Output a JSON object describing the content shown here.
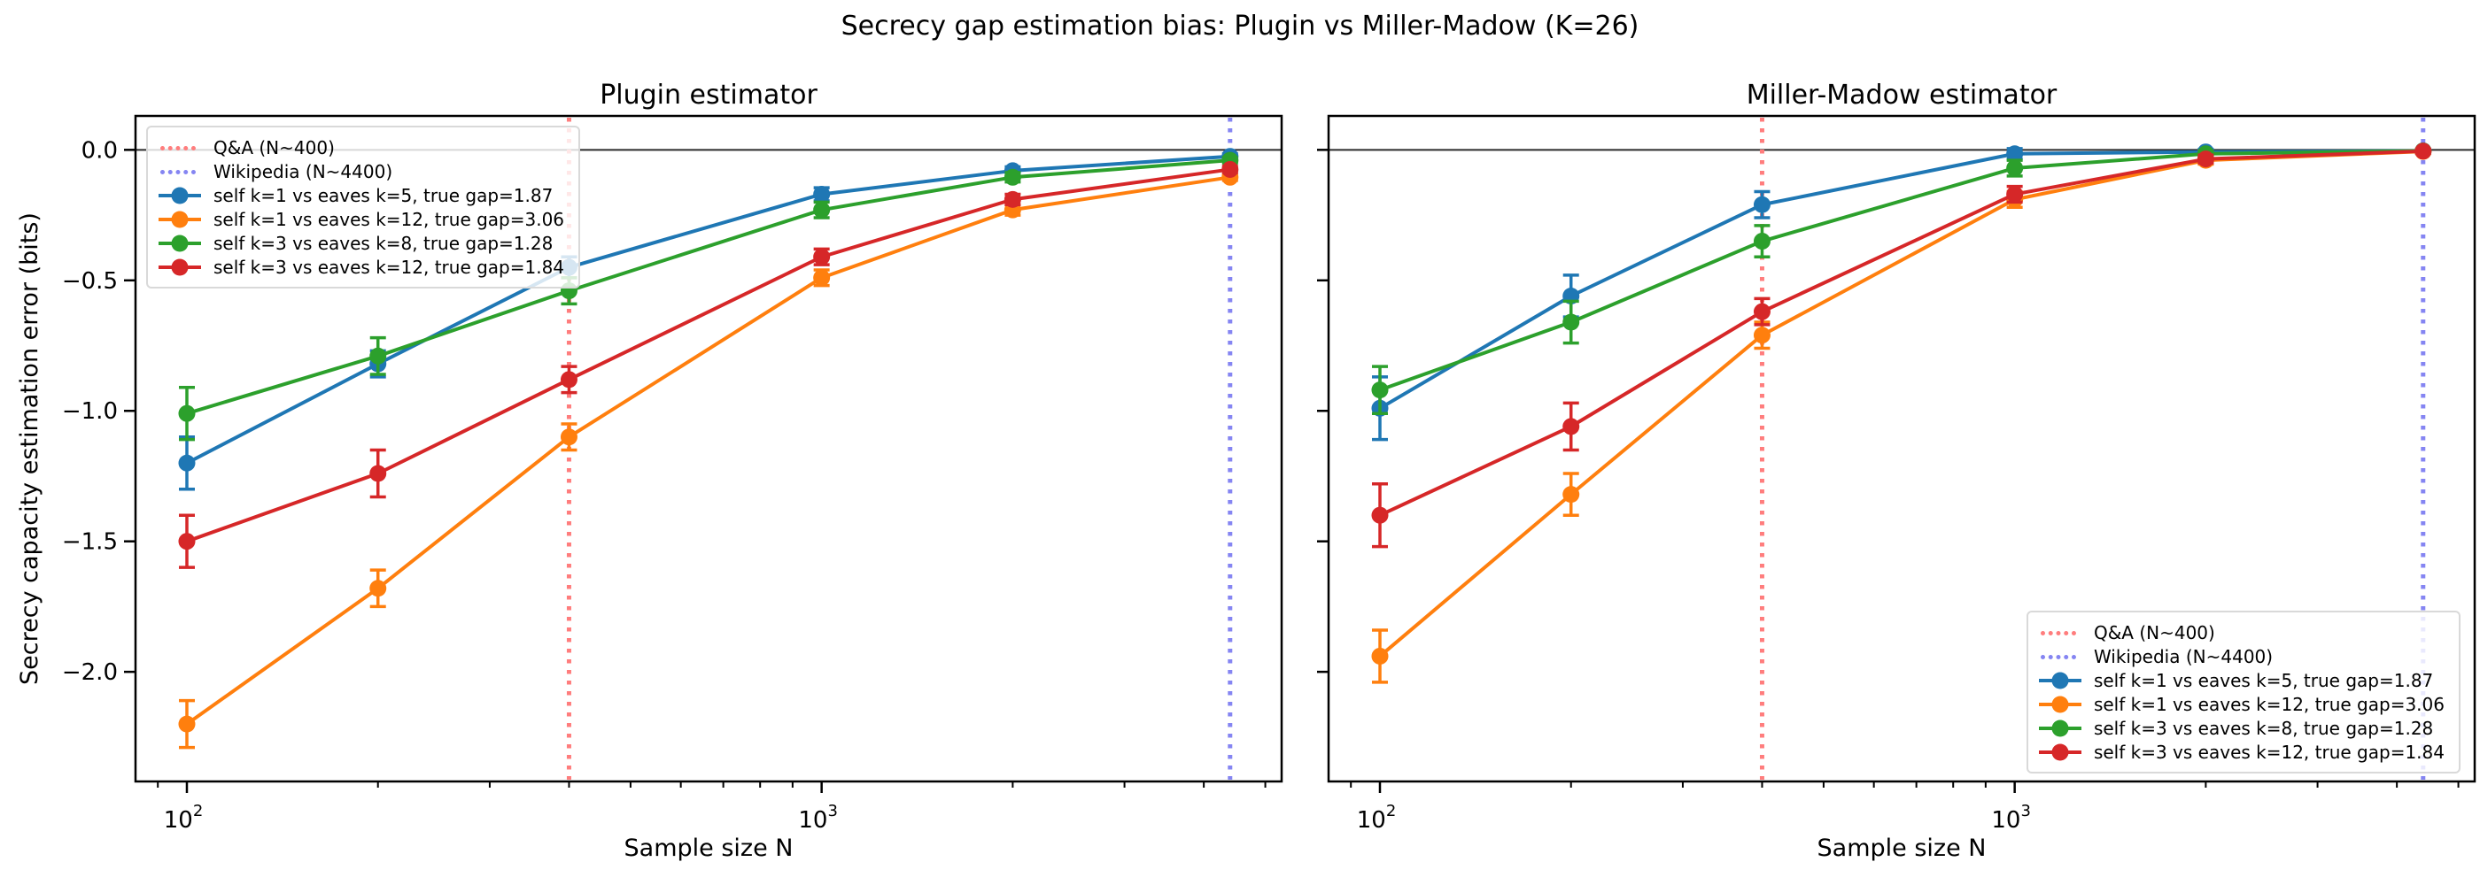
{
  "figure": {
    "suptitle": "Secrecy gap estimation bias: Plugin vs Miller-Madow (K=26)",
    "background": "#ffffff",
    "text_color": "#000000"
  },
  "chart_data": [
    {
      "type": "line",
      "title": "Plugin estimator",
      "xlabel": "Sample size N",
      "ylabel": "Secrecy capacity estimation error (bits)",
      "xscale": "log",
      "xlim": [
        83,
        5305
      ],
      "ylim": [
        -2.42,
        0.13
      ],
      "grid": false,
      "x": [
        100,
        200,
        400,
        1000,
        2000,
        4400
      ],
      "x_major_ticks": [
        {
          "value": 100,
          "mantissa": "10",
          "exponent": "2"
        },
        {
          "value": 1000,
          "mantissa": "10",
          "exponent": "3"
        }
      ],
      "x_minor_ticks": [
        90,
        200,
        300,
        400,
        500,
        600,
        700,
        800,
        900,
        2000,
        3000,
        4000,
        5000
      ],
      "y_ticks": [
        {
          "value": 0.0,
          "label": "0.0"
        },
        {
          "value": -0.5,
          "label": "−0.5"
        },
        {
          "value": -1.0,
          "label": "−1.0"
        },
        {
          "value": -1.5,
          "label": "−1.5"
        },
        {
          "value": -2.0,
          "label": "−2.0"
        }
      ],
      "show_y_tick_labels": true,
      "hline_y": 0,
      "hline_color": "#2a2a2a",
      "vlines": [
        {
          "x": 400,
          "label": "Q&A (N~400)",
          "color": "#ff7d7d",
          "style": "dotted"
        },
        {
          "x": 4400,
          "label": "Wikipedia (N~4400)",
          "color": "#8585f2",
          "style": "dotted"
        }
      ],
      "series": [
        {
          "name": "self k=1 vs eaves k=5, true gap=1.87",
          "color": "#1f77b4",
          "values": [
            -1.2,
            -0.82,
            -0.45,
            -0.17,
            -0.08,
            -0.025
          ],
          "errors": [
            0.1,
            0.05,
            0.04,
            0.025,
            0.015,
            0.01
          ]
        },
        {
          "name": "self k=1 vs eaves k=12, true gap=3.06",
          "color": "#ff7f0e",
          "values": [
            -2.2,
            -1.68,
            -1.1,
            -0.49,
            -0.23,
            -0.105
          ],
          "errors": [
            0.09,
            0.07,
            0.05,
            0.03,
            0.02,
            0.012
          ]
        },
        {
          "name": "self k=3 vs eaves k=8, true gap=1.28",
          "color": "#2ca02c",
          "values": [
            -1.01,
            -0.79,
            -0.54,
            -0.23,
            -0.105,
            -0.04
          ],
          "errors": [
            0.1,
            0.07,
            0.05,
            0.03,
            0.018,
            0.01
          ]
        },
        {
          "name": "self k=3 vs eaves k=12, true gap=1.84",
          "color": "#d62728",
          "values": [
            -1.5,
            -1.24,
            -0.88,
            -0.41,
            -0.19,
            -0.075
          ],
          "errors": [
            0.1,
            0.09,
            0.05,
            0.03,
            0.02,
            0.012
          ]
        }
      ],
      "legend_position": "upper-left"
    },
    {
      "type": "line",
      "title": "Miller-Madow estimator",
      "xlabel": "Sample size N",
      "ylabel": "",
      "xscale": "log",
      "xlim": [
        83,
        5305
      ],
      "ylim": [
        -2.42,
        0.13
      ],
      "grid": false,
      "x": [
        100,
        200,
        400,
        1000,
        2000,
        4400
      ],
      "x_major_ticks": [
        {
          "value": 100,
          "mantissa": "10",
          "exponent": "2"
        },
        {
          "value": 1000,
          "mantissa": "10",
          "exponent": "3"
        }
      ],
      "x_minor_ticks": [
        90,
        200,
        300,
        400,
        500,
        600,
        700,
        800,
        900,
        2000,
        3000,
        4000,
        5000
      ],
      "y_ticks": [
        {
          "value": 0.0,
          "label": "0.0"
        },
        {
          "value": -0.5,
          "label": "−0.5"
        },
        {
          "value": -1.0,
          "label": "−1.0"
        },
        {
          "value": -1.5,
          "label": "−1.5"
        },
        {
          "value": -2.0,
          "label": "−2.0"
        }
      ],
      "show_y_tick_labels": false,
      "hline_y": 0,
      "hline_color": "#2a2a2a",
      "vlines": [
        {
          "x": 400,
          "label": "Q&A (N~400)",
          "color": "#ff7d7d",
          "style": "dotted"
        },
        {
          "x": 4400,
          "label": "Wikipedia (N~4400)",
          "color": "#8585f2",
          "style": "dotted"
        }
      ],
      "series": [
        {
          "name": "self k=1 vs eaves k=5, true gap=1.87",
          "color": "#1f77b4",
          "values": [
            -0.99,
            -0.56,
            -0.21,
            -0.015,
            -0.008,
            -0.004
          ],
          "errors": [
            0.12,
            0.08,
            0.05,
            0.02,
            0.01,
            0.005
          ]
        },
        {
          "name": "self k=1 vs eaves k=12, true gap=3.06",
          "color": "#ff7f0e",
          "values": [
            -1.94,
            -1.32,
            -0.71,
            -0.19,
            -0.04,
            -0.006
          ],
          "errors": [
            0.1,
            0.08,
            0.05,
            0.03,
            0.015,
            0.008
          ]
        },
        {
          "name": "self k=3 vs eaves k=8, true gap=1.28",
          "color": "#2ca02c",
          "values": [
            -0.92,
            -0.66,
            -0.35,
            -0.07,
            -0.015,
            -0.004
          ],
          "errors": [
            0.09,
            0.08,
            0.06,
            0.03,
            0.01,
            0.005
          ]
        },
        {
          "name": "self k=3 vs eaves k=12, true gap=1.84",
          "color": "#d62728",
          "values": [
            -1.4,
            -1.06,
            -0.62,
            -0.17,
            -0.035,
            -0.005
          ],
          "errors": [
            0.12,
            0.09,
            0.05,
            0.03,
            0.015,
            0.008
          ]
        }
      ],
      "legend_position": "lower-right"
    }
  ]
}
